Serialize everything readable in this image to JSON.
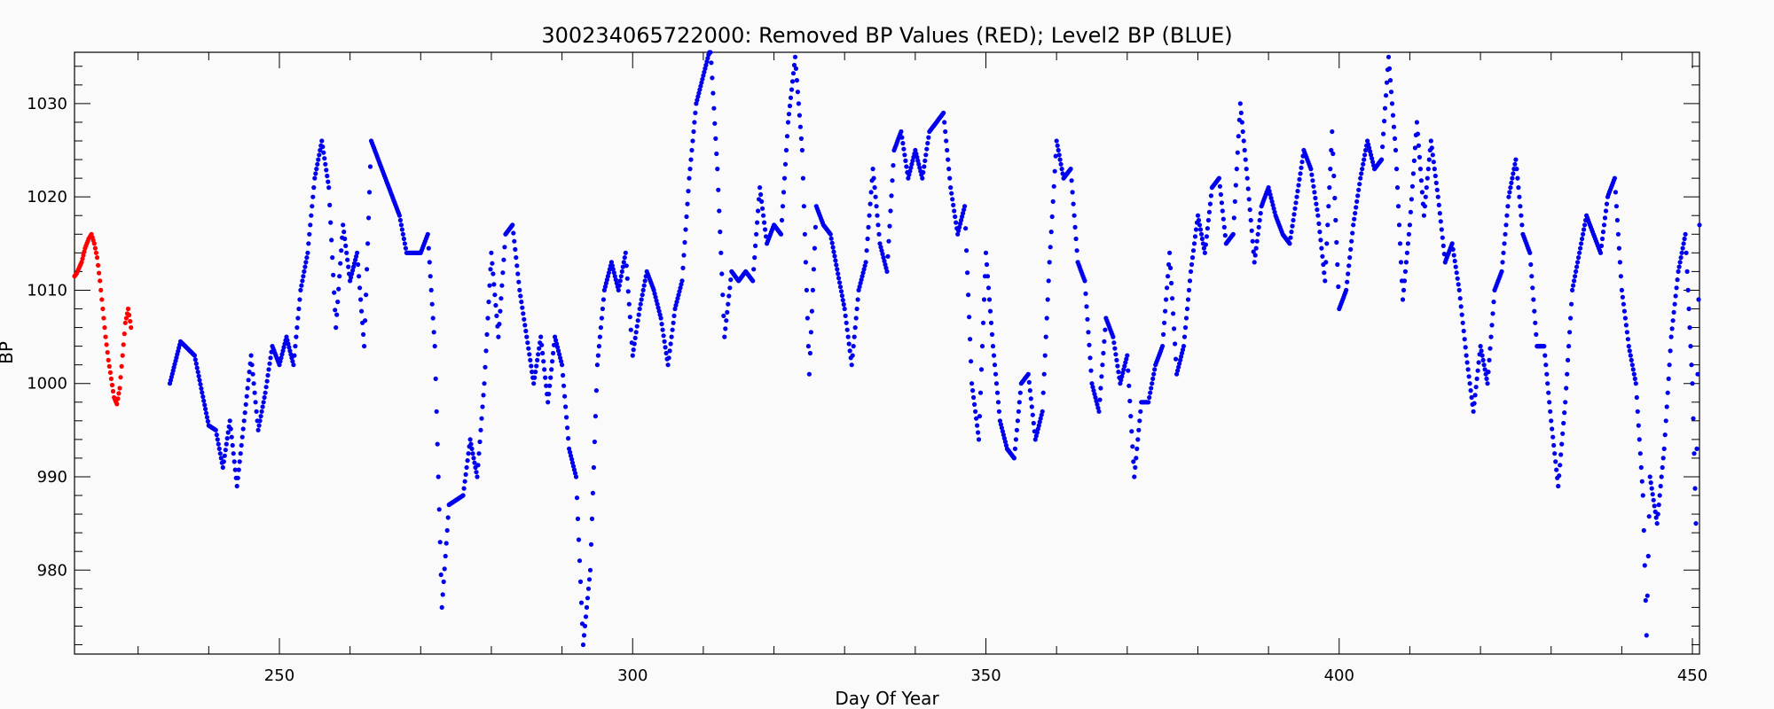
{
  "chart_data": {
    "type": "scatter",
    "title": "300234065722000: Removed BP Values (RED); Level2 BP (BLUE)",
    "xlabel": "Day Of Year",
    "ylabel": "BP",
    "xlim": [
      221,
      451
    ],
    "ylim": [
      971,
      1035.5
    ],
    "x_ticks": [
      250,
      300,
      350,
      400,
      450
    ],
    "y_ticks": [
      980,
      990,
      1000,
      1010,
      1020,
      1030
    ],
    "grid": false,
    "colors": {
      "removed": "#ff0000",
      "level2": "#0000ee"
    },
    "series": [
      {
        "name": "Removed BP Values (RED)",
        "color": "#ff0000",
        "points": [
          [
            221.0,
            1011.5
          ],
          [
            221.3,
            1011.8
          ],
          [
            222.0,
            1013.0
          ],
          [
            222.5,
            1014.5
          ],
          [
            223.0,
            1015.5
          ],
          [
            223.4,
            1016.0
          ],
          [
            223.8,
            1015.0
          ],
          [
            224.2,
            1013.5
          ],
          [
            224.6,
            1011.0
          ],
          [
            225.0,
            1008.0
          ],
          [
            225.4,
            1005.0
          ],
          [
            225.8,
            1002.5
          ],
          [
            226.2,
            1000.5
          ],
          [
            226.6,
            998.5
          ],
          [
            227.0,
            997.8
          ],
          [
            227.4,
            999.5
          ],
          [
            227.8,
            1003.0
          ],
          [
            228.2,
            1006.5
          ],
          [
            228.6,
            1008.0
          ],
          [
            229.0,
            1006.0
          ]
        ]
      },
      {
        "name": "Level2 BP (BLUE)",
        "color": "#0000ee",
        "points": [
          [
            234.5,
            1000.0
          ],
          [
            236.0,
            1004.5
          ],
          [
            238.0,
            1003.0
          ],
          [
            240.0,
            995.5
          ],
          [
            241.0,
            995.0
          ],
          [
            242.0,
            991.0
          ],
          [
            243.0,
            996.0
          ],
          [
            244.0,
            989.0
          ],
          [
            245.0,
            996.0
          ],
          [
            246.0,
            1003.0
          ],
          [
            247.0,
            995.0
          ],
          [
            248.0,
            999.0
          ],
          [
            249.0,
            1004.0
          ],
          [
            250.0,
            1002.0
          ],
          [
            251.0,
            1005.0
          ],
          [
            252.0,
            1002.0
          ],
          [
            253.0,
            1010.0
          ],
          [
            254.0,
            1014.0
          ],
          [
            255.0,
            1022.0
          ],
          [
            256.0,
            1026.0
          ],
          [
            257.0,
            1021.0
          ],
          [
            258.0,
            1006.0
          ],
          [
            259.0,
            1017.0
          ],
          [
            260.0,
            1011.0
          ],
          [
            261.0,
            1014.0
          ],
          [
            262.0,
            1004.0
          ],
          [
            263.0,
            1026.0
          ],
          [
            265.0,
            1022.0
          ],
          [
            267.0,
            1018.0
          ],
          [
            268.0,
            1014.0
          ],
          [
            270.0,
            1014.0
          ],
          [
            271.0,
            1016.0
          ],
          [
            272.0,
            1004.0
          ],
          [
            273.0,
            976.0
          ],
          [
            274.0,
            987.0
          ],
          [
            276.0,
            988.0
          ],
          [
            277.0,
            994.0
          ],
          [
            278.0,
            990.0
          ],
          [
            279.0,
            1000.0
          ],
          [
            280.0,
            1014.0
          ],
          [
            281.0,
            1005.0
          ],
          [
            282.0,
            1016.0
          ],
          [
            283.0,
            1017.0
          ],
          [
            284.0,
            1010.0
          ],
          [
            285.0,
            1005.0
          ],
          [
            286.0,
            1000.0
          ],
          [
            287.0,
            1005.0
          ],
          [
            288.0,
            998.0
          ],
          [
            289.0,
            1005.0
          ],
          [
            290.0,
            1002.0
          ],
          [
            291.0,
            993.0
          ],
          [
            292.0,
            990.0
          ],
          [
            293.0,
            972.0
          ],
          [
            294.0,
            980.0
          ],
          [
            295.0,
            1002.0
          ],
          [
            296.0,
            1010.0
          ],
          [
            297.0,
            1013.0
          ],
          [
            298.0,
            1010.0
          ],
          [
            299.0,
            1014.0
          ],
          [
            300.0,
            1003.0
          ],
          [
            301.0,
            1008.0
          ],
          [
            302.0,
            1012.0
          ],
          [
            303.0,
            1010.0
          ],
          [
            304.0,
            1007.0
          ],
          [
            305.0,
            1002.0
          ],
          [
            306.0,
            1008.0
          ],
          [
            307.0,
            1011.0
          ],
          [
            308.0,
            1022.0
          ],
          [
            309.0,
            1030.0
          ],
          [
            310.0,
            1033.0
          ],
          [
            311.0,
            1036.0
          ],
          [
            312.0,
            1023.0
          ],
          [
            313.0,
            1005.0
          ],
          [
            314.0,
            1012.0
          ],
          [
            315.0,
            1011.0
          ],
          [
            316.0,
            1012.0
          ],
          [
            317.0,
            1011.0
          ],
          [
            318.0,
            1021.0
          ],
          [
            319.0,
            1015.0
          ],
          [
            320.0,
            1017.0
          ],
          [
            321.0,
            1016.0
          ],
          [
            322.0,
            1028.0
          ],
          [
            323.0,
            1035.0
          ],
          [
            324.0,
            1025.0
          ],
          [
            325.0,
            1001.0
          ],
          [
            326.0,
            1019.0
          ],
          [
            327.0,
            1017.0
          ],
          [
            328.0,
            1016.0
          ],
          [
            330.0,
            1008.0
          ],
          [
            331.0,
            1002.0
          ],
          [
            332.0,
            1010.0
          ],
          [
            333.0,
            1013.0
          ],
          [
            334.0,
            1023.0
          ],
          [
            335.0,
            1015.0
          ],
          [
            336.0,
            1012.0
          ],
          [
            337.0,
            1025.0
          ],
          [
            338.0,
            1027.0
          ],
          [
            339.0,
            1022.0
          ],
          [
            340.0,
            1025.0
          ],
          [
            341.0,
            1022.0
          ],
          [
            342.0,
            1027.0
          ],
          [
            343.0,
            1028.0
          ],
          [
            344.0,
            1029.0
          ],
          [
            345.0,
            1021.0
          ],
          [
            346.0,
            1016.0
          ],
          [
            347.0,
            1019.0
          ],
          [
            348.0,
            1000.0
          ],
          [
            349.0,
            994.0
          ],
          [
            350.0,
            1014.0
          ],
          [
            351.0,
            1004.0
          ],
          [
            352.0,
            996.0
          ],
          [
            353.0,
            993.0
          ],
          [
            354.0,
            992.0
          ],
          [
            355.0,
            1000.0
          ],
          [
            356.0,
            1001.0
          ],
          [
            357.0,
            994.0
          ],
          [
            358.0,
            997.0
          ],
          [
            359.0,
            1013.0
          ],
          [
            360.0,
            1026.0
          ],
          [
            361.0,
            1022.0
          ],
          [
            362.0,
            1023.0
          ],
          [
            363.0,
            1013.0
          ],
          [
            364.0,
            1011.0
          ],
          [
            365.0,
            1000.0
          ],
          [
            366.0,
            997.0
          ],
          [
            367.0,
            1007.0
          ],
          [
            368.0,
            1005.0
          ],
          [
            369.0,
            1000.0
          ],
          [
            370.0,
            1003.0
          ],
          [
            371.0,
            990.0
          ],
          [
            372.0,
            998.0
          ],
          [
            373.0,
            998.0
          ],
          [
            374.0,
            1002.0
          ],
          [
            375.0,
            1004.0
          ],
          [
            376.0,
            1014.0
          ],
          [
            377.0,
            1001.0
          ],
          [
            378.0,
            1004.0
          ],
          [
            379.0,
            1012.0
          ],
          [
            380.0,
            1018.0
          ],
          [
            381.0,
            1014.0
          ],
          [
            382.0,
            1021.0
          ],
          [
            383.0,
            1022.0
          ],
          [
            384.0,
            1015.0
          ],
          [
            385.0,
            1016.0
          ],
          [
            386.0,
            1030.0
          ],
          [
            387.0,
            1022.0
          ],
          [
            388.0,
            1013.0
          ],
          [
            389.0,
            1019.0
          ],
          [
            390.0,
            1021.0
          ],
          [
            391.0,
            1018.0
          ],
          [
            392.0,
            1016.0
          ],
          [
            393.0,
            1015.0
          ],
          [
            394.0,
            1020.0
          ],
          [
            395.0,
            1025.0
          ],
          [
            396.0,
            1023.0
          ],
          [
            397.0,
            1018.0
          ],
          [
            398.0,
            1011.0
          ],
          [
            399.0,
            1027.0
          ],
          [
            400.0,
            1008.0
          ],
          [
            401.0,
            1010.0
          ],
          [
            402.0,
            1017.0
          ],
          [
            403.0,
            1022.0
          ],
          [
            404.0,
            1026.0
          ],
          [
            405.0,
            1023.0
          ],
          [
            406.0,
            1024.0
          ],
          [
            407.0,
            1035.0
          ],
          [
            408.0,
            1025.0
          ],
          [
            409.0,
            1009.0
          ],
          [
            410.0,
            1017.0
          ],
          [
            411.0,
            1028.0
          ],
          [
            412.0,
            1018.0
          ],
          [
            413.0,
            1026.0
          ],
          [
            414.0,
            1020.0
          ],
          [
            415.0,
            1013.0
          ],
          [
            416.0,
            1015.0
          ],
          [
            417.0,
            1010.0
          ],
          [
            418.0,
            1003.0
          ],
          [
            419.0,
            997.0
          ],
          [
            420.0,
            1004.0
          ],
          [
            421.0,
            1000.0
          ],
          [
            422.0,
            1010.0
          ],
          [
            423.0,
            1012.0
          ],
          [
            424.0,
            1020.0
          ],
          [
            425.0,
            1024.0
          ],
          [
            426.0,
            1016.0
          ],
          [
            427.0,
            1014.0
          ],
          [
            428.0,
            1004.0
          ],
          [
            429.0,
            1004.0
          ],
          [
            430.0,
            996.0
          ],
          [
            431.0,
            989.0
          ],
          [
            432.0,
            998.0
          ],
          [
            433.0,
            1010.0
          ],
          [
            434.0,
            1014.0
          ],
          [
            435.0,
            1018.0
          ],
          [
            436.0,
            1016.0
          ],
          [
            437.0,
            1014.0
          ],
          [
            438.0,
            1020.0
          ],
          [
            439.0,
            1022.0
          ],
          [
            440.0,
            1010.0
          ],
          [
            441.0,
            1004.0
          ],
          [
            442.0,
            1000.0
          ],
          [
            443.0,
            988.0
          ],
          [
            443.5,
            973.0
          ],
          [
            444.0,
            990.0
          ],
          [
            445.0,
            985.0
          ],
          [
            446.0,
            993.0
          ],
          [
            447.0,
            1005.0
          ],
          [
            448.0,
            1012.0
          ],
          [
            449.0,
            1016.0
          ],
          [
            450.0,
            1000.0
          ],
          [
            450.5,
            985.0
          ],
          [
            451.0,
            1017.0
          ]
        ]
      }
    ]
  }
}
